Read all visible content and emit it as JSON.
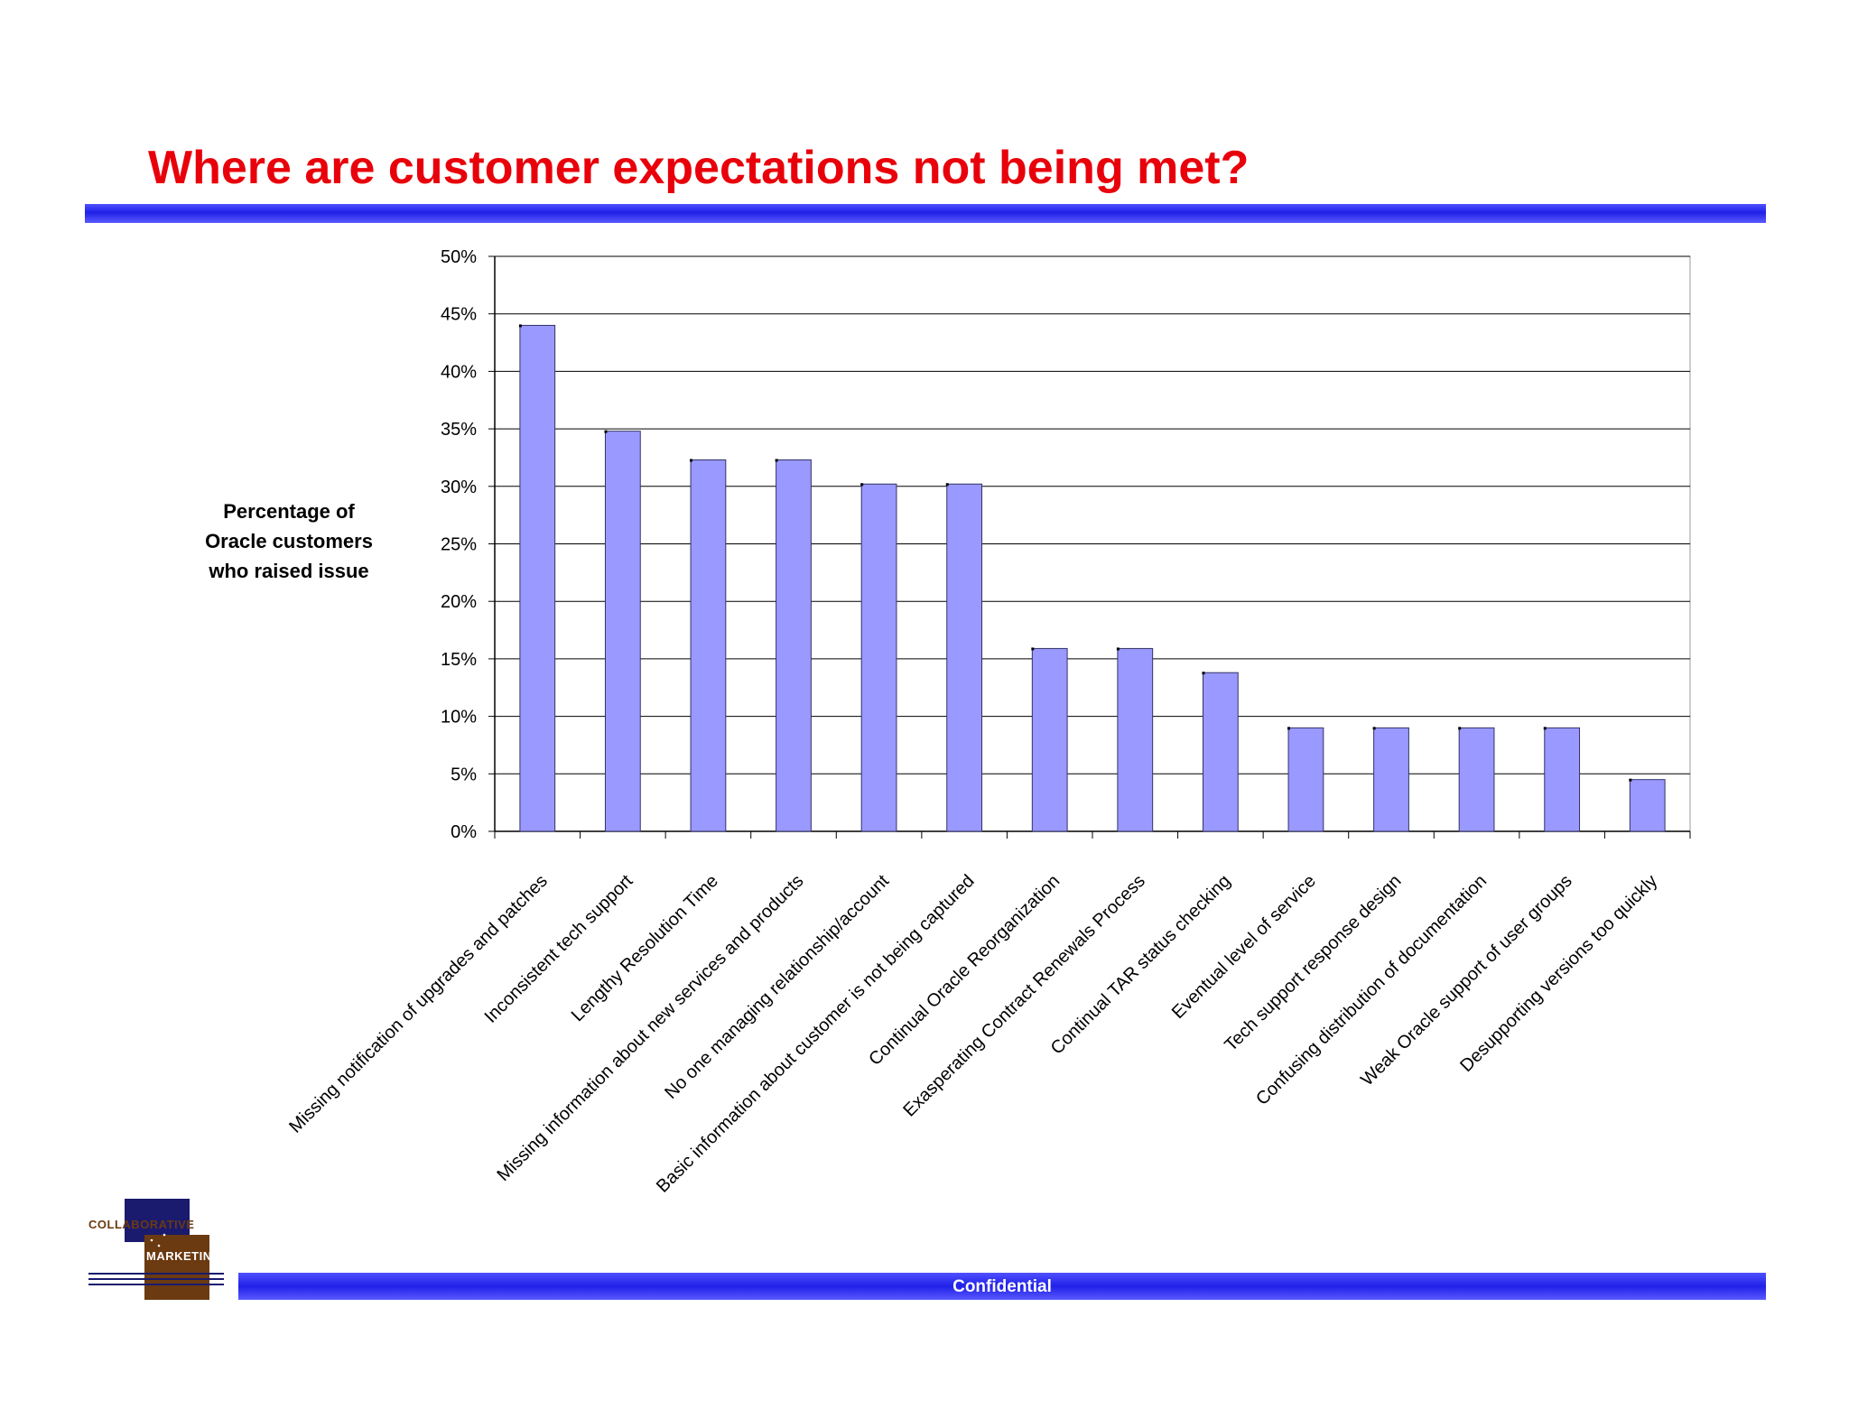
{
  "slide": {
    "title": "Where are customer expectations not being met?",
    "footer": "Confidential"
  },
  "logo": {
    "line1": "COLLABORATIVE",
    "line2": "MARKETING"
  },
  "colors": {
    "title": "#e8000b",
    "bar_fill": "#9999ff",
    "bar_stroke": "#333366",
    "accent_bar": "#2020e8"
  },
  "chart_data": {
    "type": "bar",
    "title": "",
    "xlabel": "",
    "ylabel_lines": [
      "Percentage of",
      "Oracle customers",
      "who raised issue"
    ],
    "ylim": [
      0,
      50
    ],
    "yticks": [
      0,
      5,
      10,
      15,
      20,
      25,
      30,
      35,
      40,
      45,
      50
    ],
    "ytick_labels": [
      "0%",
      "5%",
      "10%",
      "15%",
      "20%",
      "25%",
      "30%",
      "35%",
      "40%",
      "45%",
      "50%"
    ],
    "grid": true,
    "categories": [
      "Missing notification of upgrades and patches",
      "Inconsistent tech support",
      "Lengthy Resolution Time",
      "Missing information about new services and products",
      "No one managing relationship/account",
      "Basic information about customer is not being captured",
      "Continual Oracle Reorganization",
      "Exasperating Contract Renewals Process",
      "Continual TAR status checking",
      "Eventual level of service",
      "Tech support response design",
      "Confusing distribution of documentation",
      "Weak Oracle support of user groups",
      "Desupporting versions too quickly"
    ],
    "values": [
      44,
      34.8,
      32.3,
      32.3,
      30.2,
      30.2,
      15.9,
      15.9,
      13.8,
      9,
      9,
      9,
      9,
      4.5
    ]
  }
}
